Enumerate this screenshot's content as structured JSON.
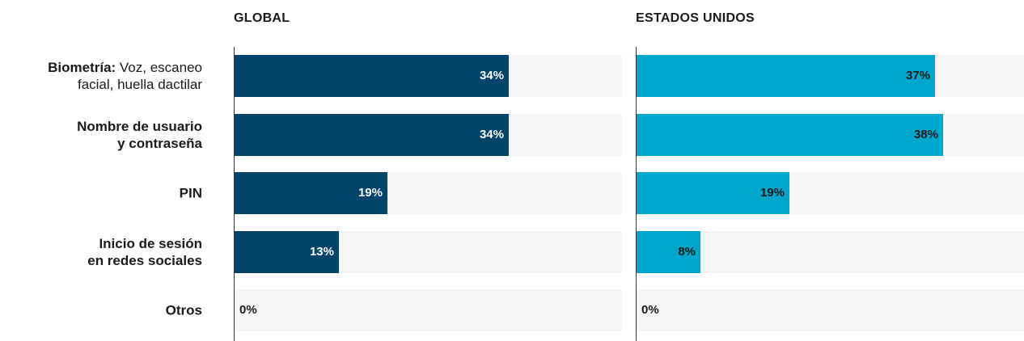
{
  "chart_data": [
    {
      "type": "bar",
      "orientation": "horizontal",
      "title": "GLOBAL",
      "categories": [
        "Biometría: Voz, escaneo facial, huella dactilar",
        "Nombre de usuario y contraseña",
        "PIN",
        "Inicio de sesión en redes sociales",
        "Otros"
      ],
      "values": [
        34,
        34,
        19,
        13,
        0
      ],
      "value_labels": [
        "34%",
        "34%",
        "19%",
        "13%",
        "0%"
      ],
      "color": "#02446a",
      "label_color": "#ffffff",
      "xlim": [
        0,
        48
      ]
    },
    {
      "type": "bar",
      "orientation": "horizontal",
      "title": "ESTADOS UNIDOS",
      "values": [
        37,
        38,
        19,
        8,
        0
      ],
      "value_labels": [
        "37%",
        "38%",
        "19%",
        "8%",
        "0%"
      ],
      "color": "#00a6cc",
      "label_color": "#1a1a1a",
      "xlim": [
        0,
        48
      ]
    }
  ]
}
